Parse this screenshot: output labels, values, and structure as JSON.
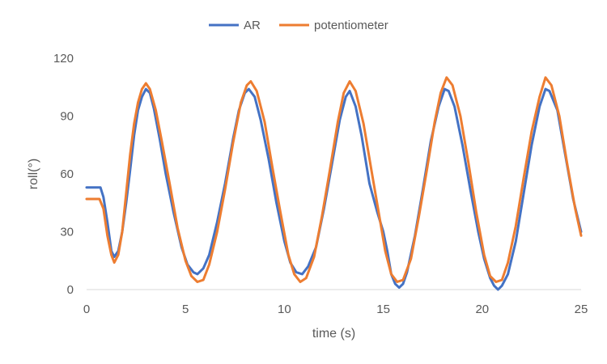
{
  "chart_data": {
    "type": "line",
    "title": "",
    "xlabel": "time (s)",
    "ylabel": "roll(°)",
    "xlim": [
      0,
      25
    ],
    "ylim": [
      0,
      120
    ],
    "x_ticks": [
      "0",
      "5",
      "10",
      "15",
      "20",
      "25"
    ],
    "y_ticks": [
      "0",
      "30",
      "60",
      "90",
      "120"
    ],
    "grid": false,
    "legend_position": "top",
    "series": [
      {
        "name": "AR",
        "color": "#4472C4",
        "points": [
          [
            0,
            53
          ],
          [
            0.7,
            53
          ],
          [
            0.85,
            48
          ],
          [
            1.05,
            35
          ],
          [
            1.25,
            20
          ],
          [
            1.4,
            17
          ],
          [
            1.6,
            20
          ],
          [
            1.8,
            30
          ],
          [
            2.0,
            45
          ],
          [
            2.2,
            62
          ],
          [
            2.4,
            80
          ],
          [
            2.6,
            93
          ],
          [
            2.8,
            100
          ],
          [
            3.0,
            104
          ],
          [
            3.2,
            102
          ],
          [
            3.4,
            94
          ],
          [
            3.7,
            78
          ],
          [
            4.0,
            60
          ],
          [
            4.4,
            40
          ],
          [
            4.8,
            22
          ],
          [
            5.1,
            13
          ],
          [
            5.4,
            9
          ],
          [
            5.6,
            8
          ],
          [
            5.9,
            11
          ],
          [
            6.2,
            18
          ],
          [
            6.6,
            35
          ],
          [
            7.0,
            55
          ],
          [
            7.4,
            78
          ],
          [
            7.7,
            93
          ],
          [
            8.0,
            102
          ],
          [
            8.2,
            104
          ],
          [
            8.5,
            100
          ],
          [
            8.8,
            88
          ],
          [
            9.2,
            68
          ],
          [
            9.6,
            45
          ],
          [
            10.0,
            25
          ],
          [
            10.3,
            14
          ],
          [
            10.6,
            9
          ],
          [
            10.9,
            8
          ],
          [
            11.2,
            12
          ],
          [
            11.6,
            22
          ],
          [
            12.0,
            42
          ],
          [
            12.4,
            65
          ],
          [
            12.8,
            88
          ],
          [
            13.1,
            100
          ],
          [
            13.3,
            103
          ],
          [
            13.6,
            95
          ],
          [
            13.9,
            80
          ],
          [
            14.3,
            55
          ],
          [
            14.7,
            40
          ],
          [
            15.0,
            30
          ],
          [
            15.2,
            20
          ],
          [
            15.4,
            8
          ],
          [
            15.6,
            3
          ],
          [
            15.8,
            1
          ],
          [
            16.0,
            3
          ],
          [
            16.2,
            9
          ],
          [
            16.6,
            28
          ],
          [
            17.0,
            52
          ],
          [
            17.4,
            77
          ],
          [
            17.8,
            95
          ],
          [
            18.1,
            104
          ],
          [
            18.3,
            103
          ],
          [
            18.6,
            95
          ],
          [
            19.0,
            75
          ],
          [
            19.4,
            52
          ],
          [
            19.8,
            30
          ],
          [
            20.1,
            16
          ],
          [
            20.4,
            6
          ],
          [
            20.6,
            2
          ],
          [
            20.8,
            0
          ],
          [
            21.0,
            2
          ],
          [
            21.3,
            8
          ],
          [
            21.7,
            25
          ],
          [
            22.1,
            50
          ],
          [
            22.5,
            75
          ],
          [
            22.9,
            95
          ],
          [
            23.2,
            104
          ],
          [
            23.4,
            103
          ],
          [
            23.8,
            93
          ],
          [
            24.2,
            70
          ],
          [
            24.6,
            47
          ],
          [
            25.0,
            30
          ]
        ]
      },
      {
        "name": "potentiometer",
        "color": "#ED7D31",
        "points": [
          [
            0,
            47
          ],
          [
            0.65,
            47
          ],
          [
            0.85,
            42
          ],
          [
            1.05,
            28
          ],
          [
            1.25,
            18
          ],
          [
            1.4,
            14
          ],
          [
            1.6,
            18
          ],
          [
            1.8,
            30
          ],
          [
            2.0,
            50
          ],
          [
            2.2,
            70
          ],
          [
            2.4,
            86
          ],
          [
            2.6,
            97
          ],
          [
            2.8,
            104
          ],
          [
            3.0,
            107
          ],
          [
            3.2,
            104
          ],
          [
            3.5,
            93
          ],
          [
            3.8,
            77
          ],
          [
            4.2,
            55
          ],
          [
            4.6,
            32
          ],
          [
            5.0,
            15
          ],
          [
            5.3,
            7
          ],
          [
            5.6,
            4
          ],
          [
            5.9,
            5
          ],
          [
            6.2,
            13
          ],
          [
            6.6,
            30
          ],
          [
            7.0,
            52
          ],
          [
            7.4,
            76
          ],
          [
            7.8,
            97
          ],
          [
            8.1,
            106
          ],
          [
            8.3,
            108
          ],
          [
            8.6,
            103
          ],
          [
            9.0,
            87
          ],
          [
            9.4,
            63
          ],
          [
            9.8,
            40
          ],
          [
            10.2,
            18
          ],
          [
            10.5,
            8
          ],
          [
            10.8,
            4
          ],
          [
            11.1,
            6
          ],
          [
            11.5,
            17
          ],
          [
            11.9,
            38
          ],
          [
            12.3,
            62
          ],
          [
            12.7,
            87
          ],
          [
            13.0,
            102
          ],
          [
            13.3,
            108
          ],
          [
            13.6,
            103
          ],
          [
            14.0,
            86
          ],
          [
            14.4,
            62
          ],
          [
            14.8,
            38
          ],
          [
            15.1,
            20
          ],
          [
            15.4,
            8
          ],
          [
            15.7,
            4
          ],
          [
            16.0,
            5
          ],
          [
            16.4,
            16
          ],
          [
            16.8,
            38
          ],
          [
            17.2,
            62
          ],
          [
            17.6,
            87
          ],
          [
            17.9,
            102
          ],
          [
            18.2,
            110
          ],
          [
            18.5,
            106
          ],
          [
            18.9,
            90
          ],
          [
            19.3,
            66
          ],
          [
            19.7,
            40
          ],
          [
            20.1,
            18
          ],
          [
            20.4,
            7
          ],
          [
            20.7,
            4
          ],
          [
            21.0,
            5
          ],
          [
            21.3,
            14
          ],
          [
            21.7,
            33
          ],
          [
            22.1,
            58
          ],
          [
            22.5,
            82
          ],
          [
            22.9,
            100
          ],
          [
            23.2,
            110
          ],
          [
            23.5,
            106
          ],
          [
            23.9,
            90
          ],
          [
            24.3,
            65
          ],
          [
            24.7,
            42
          ],
          [
            25.0,
            28
          ]
        ]
      }
    ]
  }
}
